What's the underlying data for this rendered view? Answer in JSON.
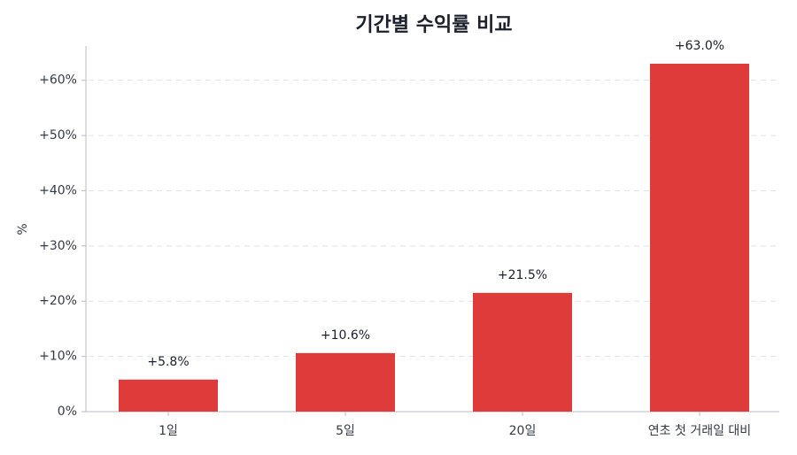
{
  "chart_data": {
    "type": "bar",
    "title": "기간별 수익률 비교",
    "ylabel": "%",
    "categories": [
      "1일",
      "5일",
      "20일",
      "연초 첫 거래일 대비"
    ],
    "values": [
      5.8,
      10.6,
      21.5,
      63.0
    ],
    "value_labels": [
      "+5.8%",
      "+10.6%",
      "+21.5%",
      "+63.0%"
    ],
    "color": "#df3b3b",
    "ylim": [
      0,
      66.2
    ],
    "yticks": [
      {
        "value": 0,
        "label": "0%"
      },
      {
        "value": 10,
        "label": "+10%"
      },
      {
        "value": 20,
        "label": "+20%"
      },
      {
        "value": 30,
        "label": "+30%"
      },
      {
        "value": 40,
        "label": "+40%"
      },
      {
        "value": 50,
        "label": "+50%"
      },
      {
        "value": 60,
        "label": "+60%"
      }
    ],
    "grid": true
  }
}
